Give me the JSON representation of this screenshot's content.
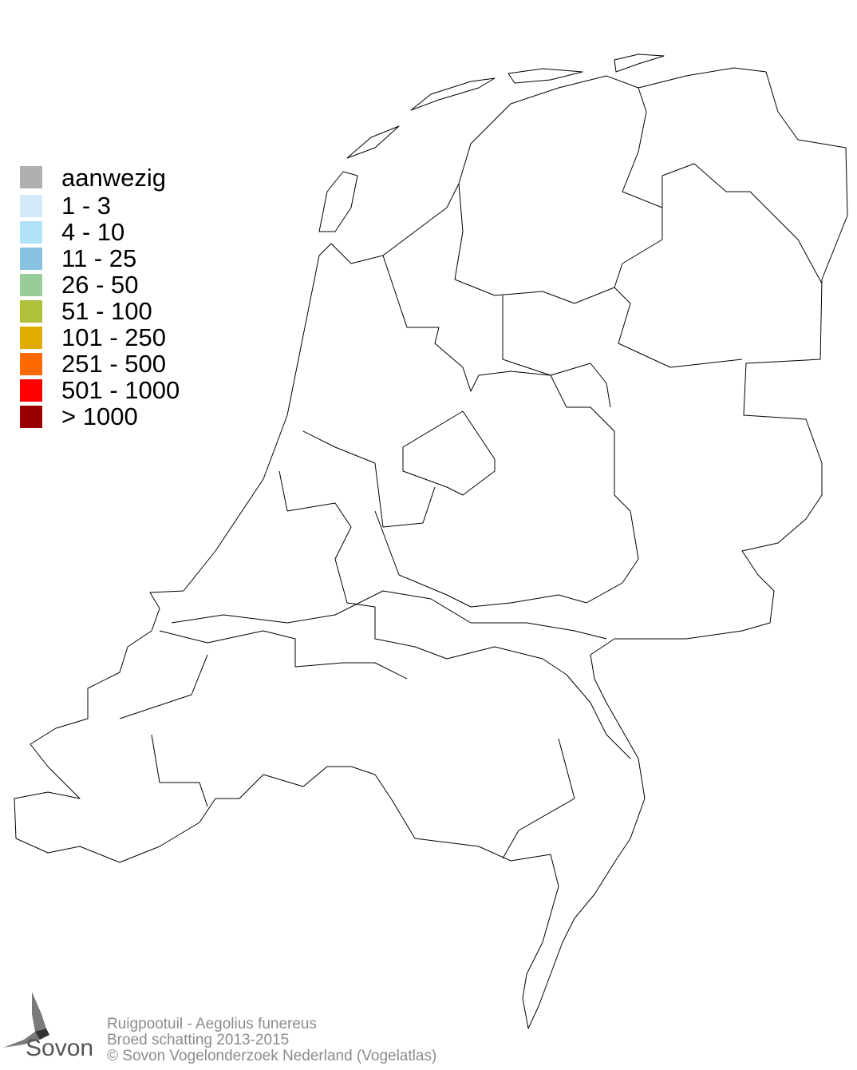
{
  "legend": {
    "items": [
      {
        "label": "aanwezig",
        "color": "#b0b0b0"
      },
      {
        "label": "1 - 3",
        "color": "#d4ecfa"
      },
      {
        "label": "4 - 10",
        "color": "#b0e2fa"
      },
      {
        "label": "11 - 25",
        "color": "#88c2e0"
      },
      {
        "label": "26 - 50",
        "color": "#98cc98"
      },
      {
        "label": "51 - 100",
        "color": "#b0c038"
      },
      {
        "label": "101 - 250",
        "color": "#e0ac00"
      },
      {
        "label": "251 - 500",
        "color": "#ff6a00"
      },
      {
        "label": "501 - 1000",
        "color": "#ff0000"
      },
      {
        "label": "> 1000",
        "color": "#9a0000"
      }
    ]
  },
  "footer": {
    "species": "Ruigpootuil - Aegolius funereus",
    "period": "Broed schatting 2013-2015",
    "copyright": "© Sovon Vogelonderzoek Nederland (Vogelatlas)"
  },
  "logo": {
    "text": "Sovon"
  }
}
